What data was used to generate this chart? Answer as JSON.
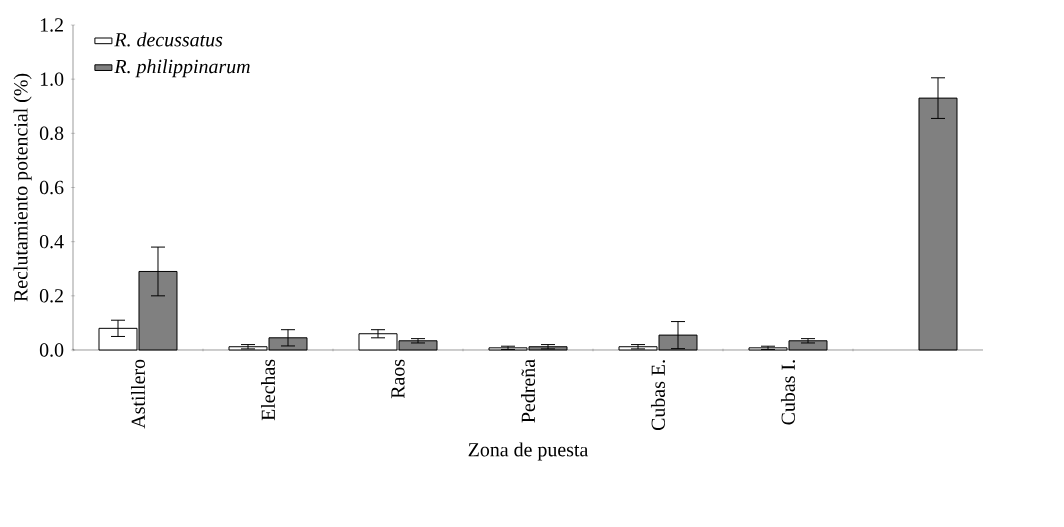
{
  "chart_data": {
    "type": "bar",
    "xlabel": "Zona de puesta",
    "ylabel": "Reclutamiento potencial (%)",
    "categories": [
      "Astillero",
      "Elechas",
      "Raos",
      "Pedreña",
      "Cubas E.",
      "Cubas I.",
      null
    ],
    "series": [
      {
        "name": "R. decussatus",
        "color": "#ffffff",
        "values": [
          0.08,
          0.012,
          0.06,
          0.008,
          0.012,
          0.008,
          null
        ],
        "errors": [
          0.03,
          0.008,
          0.015,
          0.006,
          0.008,
          0.006,
          null
        ]
      },
      {
        "name": "R. philippinarum",
        "color": "#808080",
        "values": [
          0.29,
          0.045,
          0.034,
          0.012,
          0.055,
          0.034,
          0.93
        ],
        "errors": [
          0.09,
          0.03,
          0.008,
          0.008,
          0.05,
          0.008,
          0.075
        ]
      }
    ],
    "ylim": [
      0,
      1.2
    ],
    "yticks": [
      {
        "value": 0,
        "label": "0.0"
      },
      {
        "value": 0.2,
        "label": "0.2"
      },
      {
        "value": 0.4,
        "label": "0.4"
      },
      {
        "value": 0.6,
        "label": "0.6"
      },
      {
        "value": 0.8,
        "label": "0.8"
      },
      {
        "value": 1.0,
        "label": "1.0"
      },
      {
        "value": 1.2,
        "label": "1.2"
      }
    ],
    "legend": "top left",
    "grid": false
  }
}
